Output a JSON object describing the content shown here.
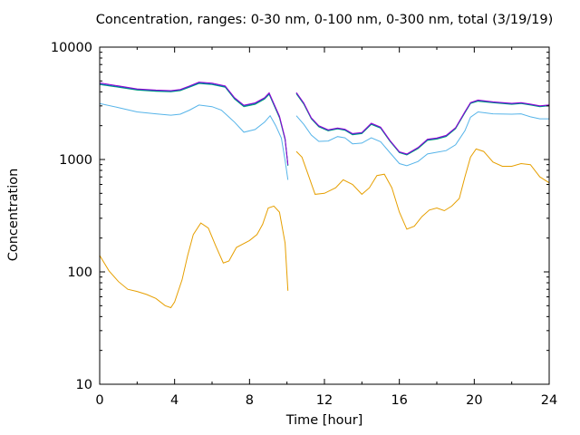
{
  "chart_data": {
    "type": "line",
    "title": "Concentration, ranges: 0-30 nm, 0-100 nm, 0-300 nm, total (3/19/19)",
    "xlabel": "Time [hour]",
    "ylabel": "Concentration",
    "xlim": [
      0,
      24
    ],
    "ylim": [
      10,
      10000
    ],
    "yscale": "log",
    "grid": false,
    "legend": "none",
    "x_ticks": [
      0,
      4,
      8,
      12,
      16,
      20,
      24
    ],
    "x_tick_labels": [
      "0",
      "4",
      "8",
      "12",
      "16",
      "20",
      "24"
    ],
    "y_ticks": [
      10,
      100,
      1000,
      10000
    ],
    "y_tick_labels": [
      "10",
      "100",
      "1000",
      "10000"
    ],
    "series": [
      {
        "color": "#e69f00",
        "segments": [
          [
            [
              0,
              140
            ],
            [
              0.5,
              102
            ],
            [
              1,
              82
            ],
            [
              1.5,
              70
            ],
            [
              2,
              67
            ],
            [
              2.5,
              63
            ],
            [
              3,
              58
            ],
            [
              3.5,
              50
            ],
            [
              3.8,
              48
            ],
            [
              4,
              54
            ],
            [
              4.4,
              85
            ],
            [
              4.7,
              140
            ],
            [
              5,
              215
            ],
            [
              5.4,
              272
            ],
            [
              5.8,
              245
            ],
            [
              6.2,
              170
            ],
            [
              6.6,
              120
            ],
            [
              6.9,
              125
            ],
            [
              7.3,
              165
            ],
            [
              8,
              190
            ],
            [
              8.4,
              215
            ],
            [
              8.7,
              265
            ],
            [
              9,
              370
            ],
            [
              9.3,
              385
            ],
            [
              9.6,
              340
            ],
            [
              9.9,
              180
            ],
            [
              10.05,
              68
            ]
          ],
          [
            [
              10.5,
              1180
            ],
            [
              10.8,
              1050
            ],
            [
              11.1,
              760
            ],
            [
              11.5,
              490
            ],
            [
              12,
              500
            ],
            [
              12.6,
              560
            ],
            [
              13,
              660
            ],
            [
              13.5,
              600
            ],
            [
              14,
              490
            ],
            [
              14.4,
              560
            ],
            [
              14.8,
              720
            ],
            [
              15.2,
              740
            ],
            [
              15.6,
              560
            ],
            [
              16,
              340
            ],
            [
              16.4,
              240
            ],
            [
              16.8,
              255
            ],
            [
              17.2,
              310
            ],
            [
              17.6,
              355
            ],
            [
              18,
              370
            ],
            [
              18.4,
              350
            ],
            [
              18.8,
              385
            ],
            [
              19.2,
              450
            ],
            [
              19.5,
              700
            ],
            [
              19.8,
              1050
            ],
            [
              20.1,
              1240
            ],
            [
              20.5,
              1180
            ],
            [
              21,
              950
            ],
            [
              21.5,
              870
            ],
            [
              22,
              870
            ],
            [
              22.5,
              920
            ],
            [
              23,
              900
            ],
            [
              23.5,
              700
            ],
            [
              24,
              620
            ]
          ]
        ]
      },
      {
        "color": "#56b4e9",
        "segments": [
          [
            [
              0,
              3150
            ],
            [
              1,
              2900
            ],
            [
              2,
              2650
            ],
            [
              3,
              2550
            ],
            [
              3.8,
              2480
            ],
            [
              4.3,
              2530
            ],
            [
              4.8,
              2750
            ],
            [
              5.3,
              3050
            ],
            [
              6,
              2950
            ],
            [
              6.5,
              2750
            ],
            [
              7.2,
              2150
            ],
            [
              7.7,
              1750
            ],
            [
              8.3,
              1850
            ],
            [
              8.8,
              2150
            ],
            [
              9.1,
              2450
            ],
            [
              9.4,
              2000
            ],
            [
              9.7,
              1550
            ],
            [
              9.9,
              980
            ],
            [
              10.05,
              660
            ]
          ],
          [
            [
              10.5,
              2450
            ],
            [
              10.9,
              2050
            ],
            [
              11.3,
              1650
            ],
            [
              11.7,
              1450
            ],
            [
              12.2,
              1460
            ],
            [
              12.7,
              1600
            ],
            [
              13.1,
              1560
            ],
            [
              13.5,
              1380
            ],
            [
              14,
              1400
            ],
            [
              14.5,
              1560
            ],
            [
              15,
              1440
            ],
            [
              15.5,
              1150
            ],
            [
              16,
              920
            ],
            [
              16.4,
              880
            ],
            [
              17,
              960
            ],
            [
              17.5,
              1120
            ],
            [
              18,
              1160
            ],
            [
              18.5,
              1200
            ],
            [
              19,
              1350
            ],
            [
              19.5,
              1800
            ],
            [
              19.8,
              2380
            ],
            [
              20.2,
              2650
            ],
            [
              21,
              2550
            ],
            [
              22,
              2530
            ],
            [
              22.5,
              2550
            ],
            [
              23,
              2400
            ],
            [
              23.5,
              2300
            ],
            [
              24,
              2300
            ]
          ]
        ]
      },
      {
        "color": "#009e73",
        "segments": [
          [
            [
              0,
              4650
            ],
            [
              1,
              4400
            ],
            [
              2,
              4150
            ],
            [
              3,
              4050
            ],
            [
              3.8,
              4000
            ],
            [
              4.3,
              4100
            ],
            [
              4.8,
              4400
            ],
            [
              5.3,
              4750
            ],
            [
              6,
              4650
            ],
            [
              6.7,
              4400
            ],
            [
              7.2,
              3450
            ],
            [
              7.7,
              2950
            ],
            [
              8.3,
              3100
            ],
            [
              8.8,
              3450
            ],
            [
              9.05,
              3800
            ],
            [
              9.3,
              3050
            ],
            [
              9.6,
              2350
            ],
            [
              9.9,
              1500
            ],
            [
              10.05,
              880
            ]
          ],
          [
            [
              10.5,
              3850
            ],
            [
              10.9,
              3100
            ],
            [
              11.3,
              2300
            ],
            [
              11.7,
              1950
            ],
            [
              12.2,
              1800
            ],
            [
              12.7,
              1870
            ],
            [
              13.1,
              1820
            ],
            [
              13.5,
              1660
            ],
            [
              14,
              1700
            ],
            [
              14.5,
              2050
            ],
            [
              15,
              1900
            ],
            [
              15.5,
              1450
            ],
            [
              16,
              1150
            ],
            [
              16.4,
              1100
            ],
            [
              17,
              1250
            ],
            [
              17.5,
              1480
            ],
            [
              18,
              1520
            ],
            [
              18.5,
              1600
            ],
            [
              19,
              1880
            ],
            [
              19.5,
              2600
            ],
            [
              19.8,
              3150
            ],
            [
              20.2,
              3300
            ],
            [
              21,
              3200
            ],
            [
              22,
              3100
            ],
            [
              22.5,
              3150
            ],
            [
              23,
              3050
            ],
            [
              23.5,
              2950
            ],
            [
              24,
              3000
            ]
          ]
        ]
      },
      {
        "color": "#0072b2",
        "segments": [
          [
            [
              0,
              4700
            ],
            [
              1,
              4450
            ],
            [
              2,
              4200
            ],
            [
              3,
              4100
            ],
            [
              3.8,
              4050
            ],
            [
              4.3,
              4150
            ],
            [
              4.8,
              4450
            ],
            [
              5.3,
              4800
            ],
            [
              6,
              4700
            ],
            [
              6.7,
              4450
            ],
            [
              7.2,
              3500
            ],
            [
              7.7,
              3000
            ],
            [
              8.3,
              3150
            ],
            [
              8.8,
              3500
            ],
            [
              9.05,
              3850
            ],
            [
              9.3,
              3100
            ],
            [
              9.6,
              2400
            ],
            [
              9.9,
              1520
            ],
            [
              10.05,
              890
            ]
          ],
          [
            [
              10.5,
              3900
            ],
            [
              10.9,
              3150
            ],
            [
              11.3,
              2330
            ],
            [
              11.7,
              1980
            ],
            [
              12.2,
              1820
            ],
            [
              12.7,
              1890
            ],
            [
              13.1,
              1840
            ],
            [
              13.5,
              1680
            ],
            [
              14,
              1720
            ],
            [
              14.5,
              2080
            ],
            [
              15,
              1920
            ],
            [
              15.5,
              1470
            ],
            [
              16,
              1160
            ],
            [
              16.4,
              1110
            ],
            [
              17,
              1270
            ],
            [
              17.5,
              1500
            ],
            [
              18,
              1540
            ],
            [
              18.5,
              1620
            ],
            [
              19,
              1900
            ],
            [
              19.5,
              2630
            ],
            [
              19.8,
              3180
            ],
            [
              20.2,
              3350
            ],
            [
              21,
              3230
            ],
            [
              22,
              3130
            ],
            [
              22.5,
              3180
            ],
            [
              23,
              3080
            ],
            [
              23.5,
              2980
            ],
            [
              24,
              3030
            ]
          ]
        ]
      },
      {
        "color": "#9400d3",
        "segments": [
          [
            [
              0,
              4800
            ],
            [
              1,
              4520
            ],
            [
              2,
              4250
            ],
            [
              3,
              4150
            ],
            [
              3.8,
              4100
            ],
            [
              4.3,
              4200
            ],
            [
              4.8,
              4520
            ],
            [
              5.3,
              4880
            ],
            [
              6,
              4780
            ],
            [
              6.7,
              4520
            ],
            [
              7.2,
              3550
            ],
            [
              7.7,
              3040
            ],
            [
              8.3,
              3190
            ],
            [
              8.8,
              3550
            ],
            [
              9.05,
              3920
            ],
            [
              9.3,
              3150
            ],
            [
              9.6,
              2430
            ],
            [
              9.9,
              1540
            ],
            [
              10.05,
              900
            ]
          ],
          [
            [
              10.5,
              3950
            ],
            [
              10.9,
              3180
            ],
            [
              11.3,
              2350
            ],
            [
              11.7,
              2000
            ],
            [
              12.2,
              1840
            ],
            [
              12.7,
              1910
            ],
            [
              13.1,
              1860
            ],
            [
              13.5,
              1700
            ],
            [
              14,
              1740
            ],
            [
              14.5,
              2100
            ],
            [
              15,
              1940
            ],
            [
              15.5,
              1480
            ],
            [
              16,
              1170
            ],
            [
              16.4,
              1120
            ],
            [
              17,
              1280
            ],
            [
              17.5,
              1515
            ],
            [
              18,
              1555
            ],
            [
              18.5,
              1640
            ],
            [
              19,
              1920
            ],
            [
              19.5,
              2660
            ],
            [
              19.8,
              3210
            ],
            [
              20.2,
              3380
            ],
            [
              21,
              3260
            ],
            [
              22,
              3160
            ],
            [
              22.5,
              3210
            ],
            [
              23,
              3110
            ],
            [
              23.5,
              3010
            ],
            [
              24,
              3060
            ]
          ]
        ]
      }
    ]
  }
}
